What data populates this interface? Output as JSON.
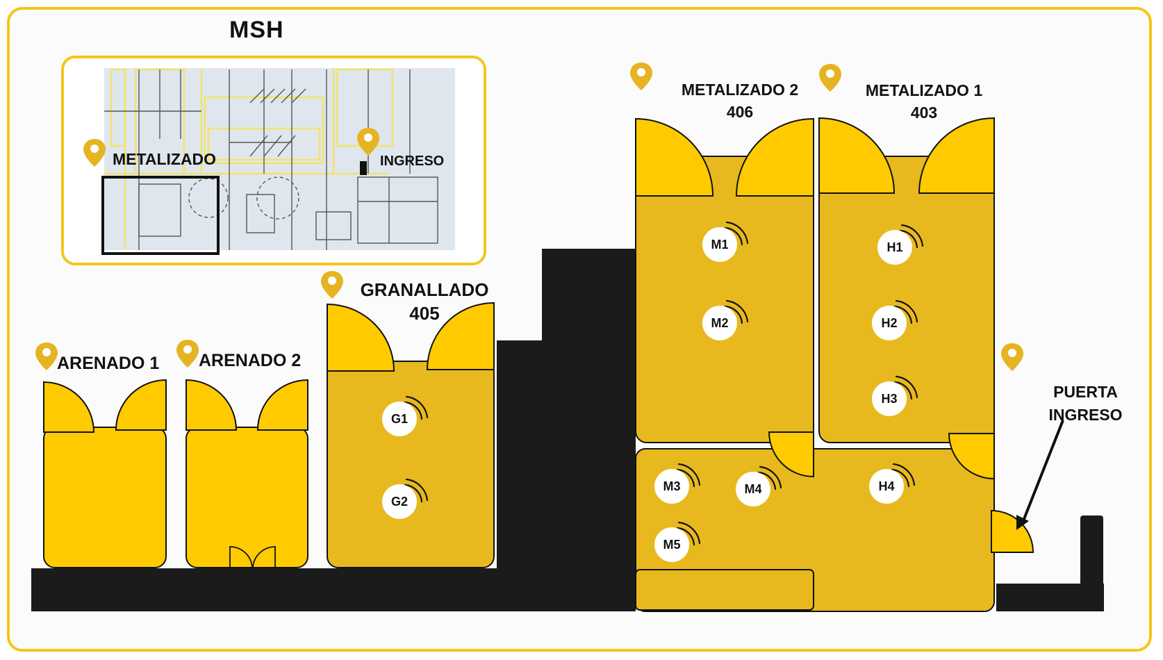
{
  "title": "MSH",
  "colors": {
    "frame": "#f5c518",
    "room": "#e8b91e",
    "door": "#ffcb00",
    "dark": "#1b1b1b",
    "pin": "#e6b422"
  },
  "overview": {
    "labels": {
      "metalizado": "METALIZADO",
      "ingreso": "INGRESO"
    }
  },
  "areas": {
    "arenado1": {
      "name": "ARENADO 1"
    },
    "arenado2": {
      "name": "ARENADO 2"
    },
    "granallado": {
      "name": "GRANALLADO",
      "code": "405"
    },
    "metalizado2": {
      "name": "METALIZADO 2",
      "code": "406"
    },
    "metalizado1": {
      "name": "METALIZADO 1",
      "code": "403"
    },
    "puerta": {
      "line1": "PUERTA",
      "line2": "INGRESO"
    }
  },
  "sensors": [
    "G1",
    "G2",
    "M1",
    "M2",
    "H1",
    "H2",
    "H3",
    "M3",
    "M4",
    "H4",
    "M5"
  ],
  "icons": {
    "pin": "location-pin-icon",
    "signal": "wifi-signal-icon"
  }
}
